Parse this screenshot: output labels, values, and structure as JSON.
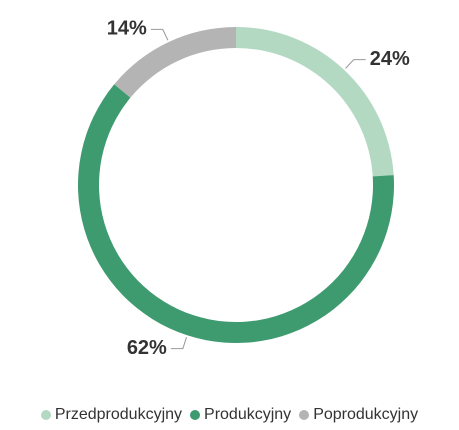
{
  "chart_data": {
    "type": "donut",
    "categories": [
      "Przedprodukcyjny",
      "Produkcyjny",
      "Poprodukcyjny"
    ],
    "values": [
      24,
      62,
      14
    ],
    "value_labels": [
      "24%",
      "62%",
      "14%"
    ],
    "colors": [
      "#b3d9c3",
      "#3e9a6f",
      "#b4b4b4"
    ],
    "legend": "bottom"
  }
}
